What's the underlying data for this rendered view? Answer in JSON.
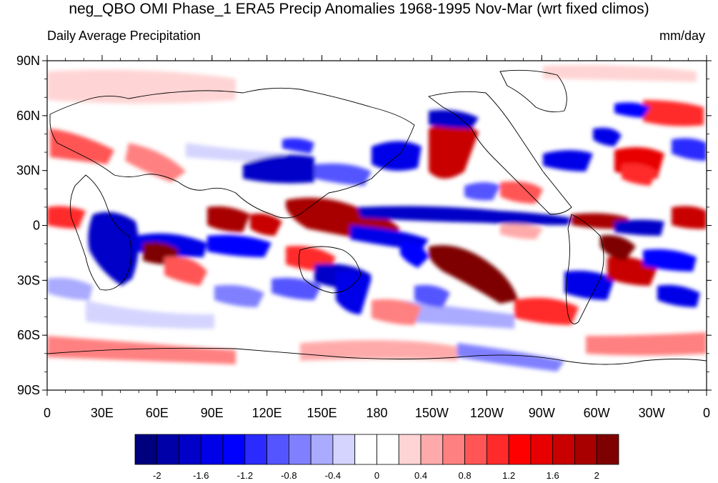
{
  "title": "neg_QBO OMI Phase_1 ERA5 Precip Anomalies 1968-1995 Nov-Mar (wrt fixed climos)",
  "subtitle_left": "Daily Average Precipitation",
  "subtitle_right": "mm/day",
  "lat_labels": [
    "90N",
    "60N",
    "30N",
    "0",
    "30S",
    "60S",
    "90S"
  ],
  "lon_labels": [
    "0",
    "30E",
    "60E",
    "90E",
    "120E",
    "150E",
    "180",
    "150W",
    "120W",
    "90W",
    "60W",
    "30W",
    "0"
  ],
  "colorbar": {
    "colors": [
      "#00007f",
      "#0000a8",
      "#0000c8",
      "#0000e8",
      "#0000ff",
      "#2b2bff",
      "#5555ff",
      "#8080ff",
      "#aaaaff",
      "#d4d4ff",
      "#ffffff",
      "#ffffff",
      "#ffd4d4",
      "#ffaaaa",
      "#ff8080",
      "#ff5555",
      "#ff2b2b",
      "#ff0000",
      "#e80000",
      "#c80000",
      "#a80000",
      "#7f0000"
    ],
    "labels": [
      "-2",
      "-1.6",
      "-1.2",
      "-0.8",
      "-0.4",
      "0",
      "0.4",
      "0.8",
      "1.2",
      "1.6",
      "2"
    ]
  }
}
